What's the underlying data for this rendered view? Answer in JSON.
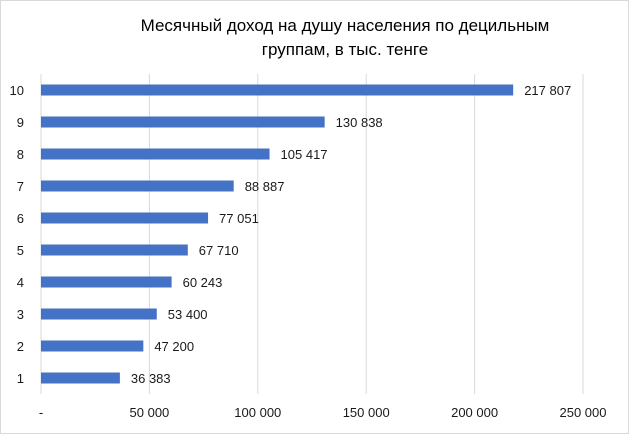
{
  "chart_data": {
    "type": "bar",
    "orientation": "horizontal",
    "title_line1": "Месячный доход на душу населения по децильным",
    "title_line2": "группам, в тыс. тенге",
    "categories": [
      "1",
      "2",
      "3",
      "4",
      "5",
      "6",
      "7",
      "8",
      "9",
      "10"
    ],
    "values": [
      36383,
      47200,
      53400,
      60243,
      67710,
      77051,
      88887,
      105417,
      130838,
      217807
    ],
    "value_labels": [
      "36 383",
      "47 200",
      "53 400",
      "60 243",
      "67 710",
      "77 051",
      "88 887",
      "105 417",
      "130 838",
      "217 807"
    ],
    "x_ticks": [
      0,
      50000,
      100000,
      150000,
      200000,
      250000
    ],
    "x_tick_labels": [
      "-",
      "50 000",
      "100 000",
      "150 000",
      "200 000",
      "250 000"
    ],
    "xlim": [
      0,
      250000
    ],
    "grid": true,
    "bar_color": "#4472c4",
    "grid_color": "#d9d9d9"
  }
}
